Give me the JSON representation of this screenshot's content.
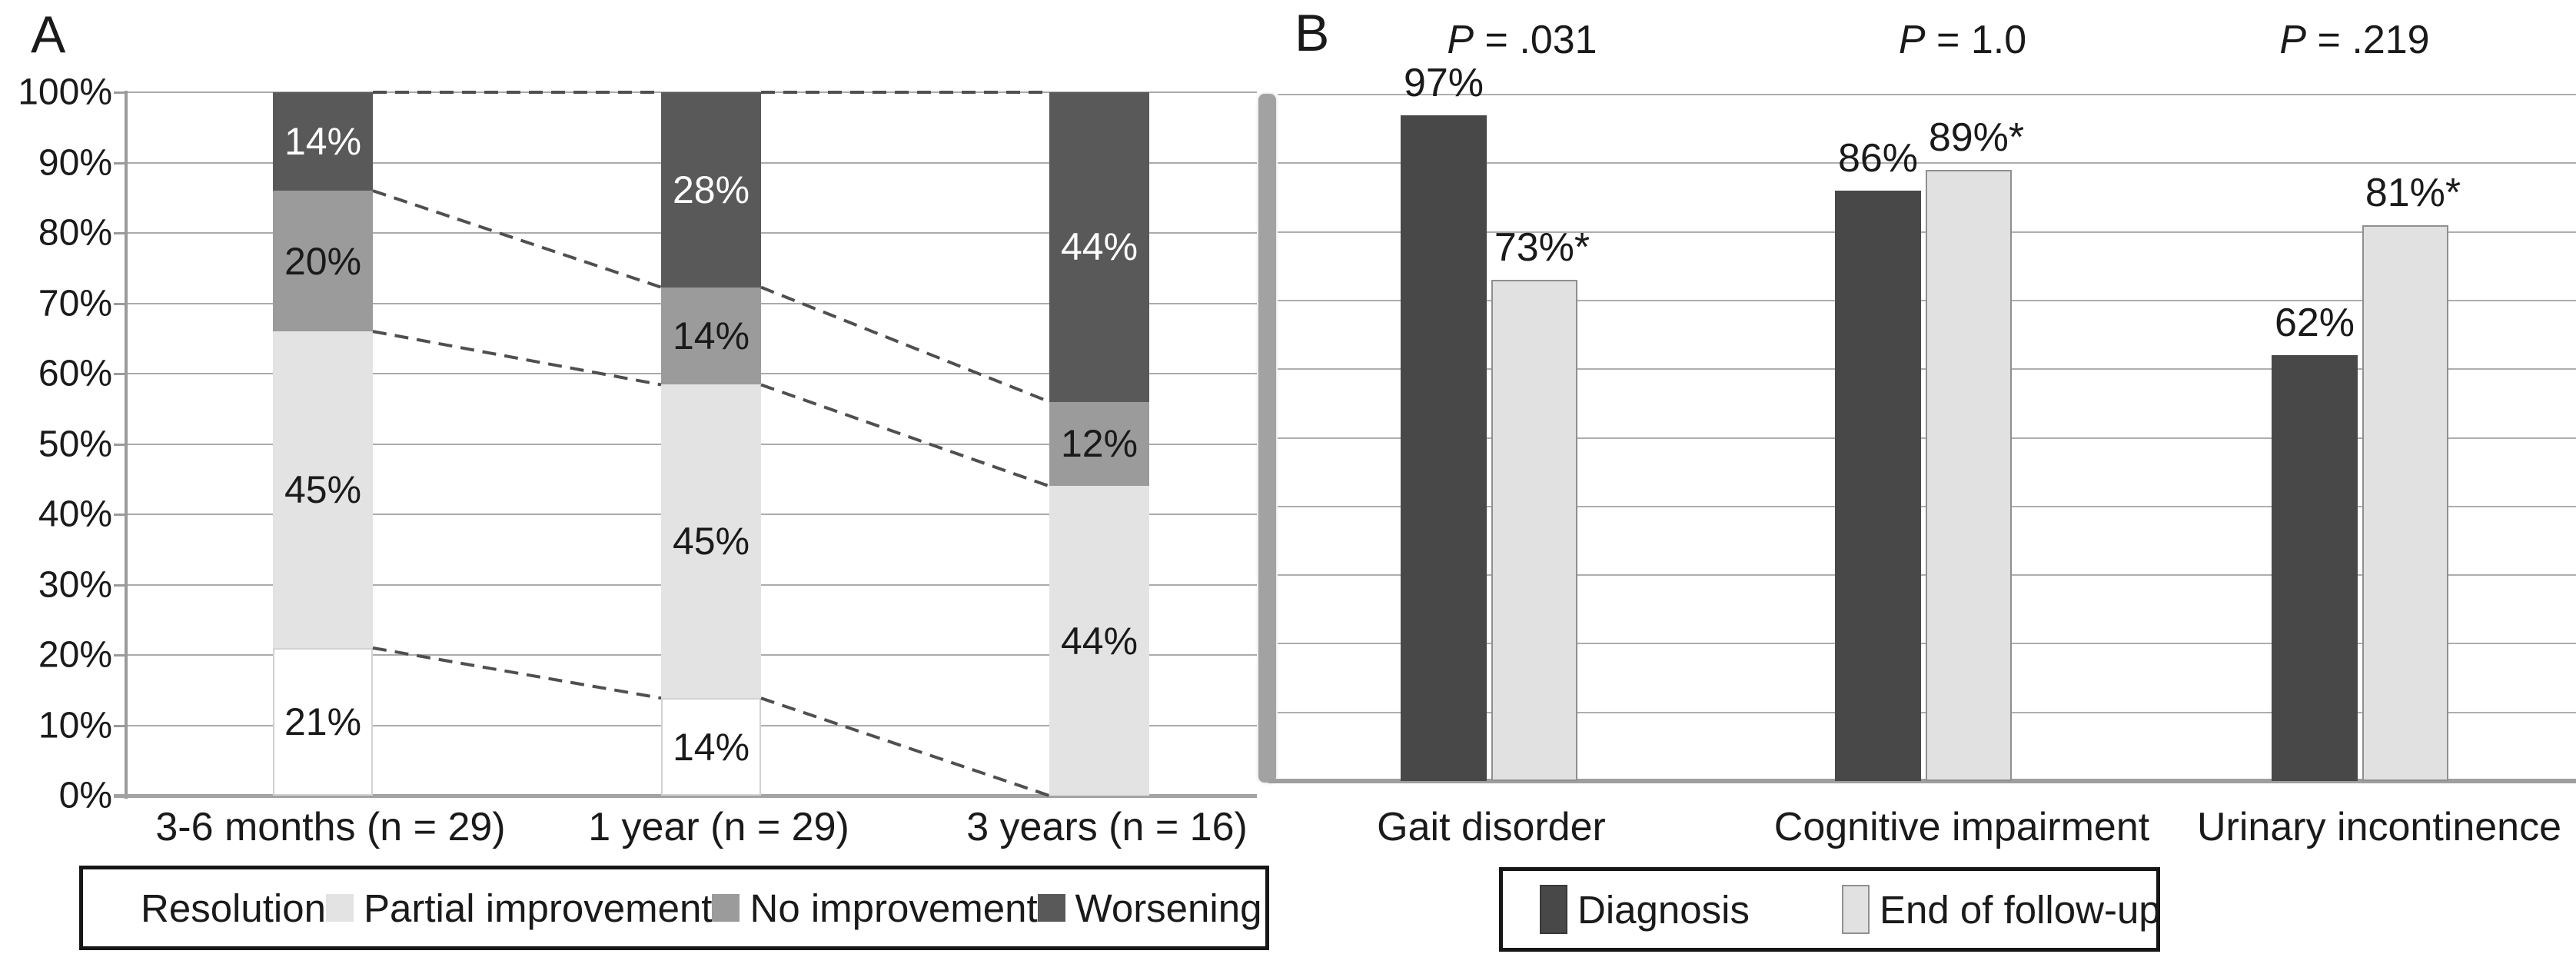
{
  "colors": {
    "resolution": "#ffffff",
    "partial": "#e3e3e3",
    "no_improvement": "#9b9b9b",
    "worsening": "#595959",
    "diagnosis": "#484848",
    "followup": "#e1e1e1",
    "grid": "#ababab",
    "axis": "#a3a3a3",
    "dash": "#4f4f4f",
    "text": "#1a1a1a"
  },
  "panel_a": {
    "label": "A",
    "y_ticks": [
      "100%",
      "90%",
      "80%",
      "70%",
      "60%",
      "50%",
      "40%",
      "30%",
      "20%",
      "10%",
      "0%"
    ],
    "legend": [
      {
        "label": "Resolution",
        "color": "#ffffff"
      },
      {
        "label": "Partial improvement",
        "color": "#e3e3e3"
      },
      {
        "label": "No improvement",
        "color": "#9b9b9b"
      },
      {
        "label": "Worsening",
        "color": "#595959"
      }
    ],
    "bars": [
      {
        "category": "3-6 months (n = 29)",
        "segments": [
          {
            "name": "Resolution",
            "value": 21,
            "label": "21%"
          },
          {
            "name": "Partial improvement",
            "value": 45,
            "label": "45%"
          },
          {
            "name": "No improvement",
            "value": 20,
            "label": "20%"
          },
          {
            "name": "Worsening",
            "value": 14,
            "label": "14%"
          }
        ]
      },
      {
        "category": "1 year (n = 29)",
        "segments": [
          {
            "name": "Resolution",
            "value": 14,
            "label": "14%"
          },
          {
            "name": "Partial improvement",
            "value": 45,
            "label": "45%"
          },
          {
            "name": "No improvement",
            "value": 14,
            "label": "14%"
          },
          {
            "name": "Worsening",
            "value": 28,
            "label": "28%"
          }
        ]
      },
      {
        "category": "3 years (n = 16)",
        "segments": [
          {
            "name": "Resolution",
            "value": 0,
            "label": ""
          },
          {
            "name": "Partial improvement",
            "value": 44,
            "label": "44%"
          },
          {
            "name": "No improvement",
            "value": 12,
            "label": "12%"
          },
          {
            "name": "Worsening",
            "value": 44,
            "label": "44%"
          }
        ]
      }
    ]
  },
  "panel_b": {
    "label": "B",
    "groups": [
      {
        "category": "Gait disorder",
        "p_prefix": "P",
        "p_rest": " = .031",
        "bars": [
          {
            "series": "Diagnosis",
            "value": 97,
            "label": "97%"
          },
          {
            "series": "End of follow-up",
            "value": 73,
            "label": "73%*"
          }
        ]
      },
      {
        "category": "Cognitive impairment",
        "p_prefix": "P",
        "p_rest": " = 1.0",
        "bars": [
          {
            "series": "Diagnosis",
            "value": 86,
            "label": "86%"
          },
          {
            "series": "End of follow-up",
            "value": 89,
            "label": "89%*"
          }
        ]
      },
      {
        "category": "Urinary incontinence",
        "p_prefix": "P",
        "p_rest": " = .219",
        "bars": [
          {
            "series": "Diagnosis",
            "value": 62,
            "label": "62%"
          },
          {
            "series": "End of follow-up",
            "value": 81,
            "label": "81%*"
          }
        ]
      }
    ],
    "legend": [
      {
        "label": "Diagnosis",
        "color": "#484848"
      },
      {
        "label": "End of follow-up",
        "color": "#e1e1e1"
      }
    ]
  },
  "chart_data": [
    {
      "type": "bar",
      "subtype": "stacked",
      "categories": [
        "3-6 months (n = 29)",
        "1 year (n = 29)",
        "3 years (n = 16)"
      ],
      "series": [
        {
          "name": "Resolution",
          "values": [
            21,
            14,
            0
          ]
        },
        {
          "name": "Partial improvement",
          "values": [
            45,
            45,
            44
          ]
        },
        {
          "name": "No improvement",
          "values": [
            20,
            14,
            12
          ]
        },
        {
          "name": "Worsening",
          "values": [
            14,
            28,
            44
          ]
        }
      ],
      "ylim": [
        0,
        100
      ],
      "y_tick_step": 10,
      "y_tick_format": "percent",
      "grid": true,
      "legend_position": "bottom",
      "annotations": "dashed connector lines link segment boundaries between adjacent bars"
    },
    {
      "type": "bar",
      "subtype": "grouped",
      "categories": [
        "Gait disorder",
        "Cognitive impairment",
        "Urinary incontinence"
      ],
      "series": [
        {
          "name": "Diagnosis",
          "values": [
            97,
            86,
            62
          ]
        },
        {
          "name": "End of follow-up",
          "values": [
            73,
            89,
            81
          ]
        }
      ],
      "value_labels": [
        [
          "97%",
          "73%*"
        ],
        [
          "86%",
          "89%*"
        ],
        [
          "62%",
          "81%*"
        ]
      ],
      "p_values": [
        "P = .031",
        "P = 1.0",
        "P = .219"
      ],
      "ylim": [
        0,
        100
      ],
      "y_tick_step": 10,
      "grid": true,
      "legend_position": "bottom"
    }
  ]
}
